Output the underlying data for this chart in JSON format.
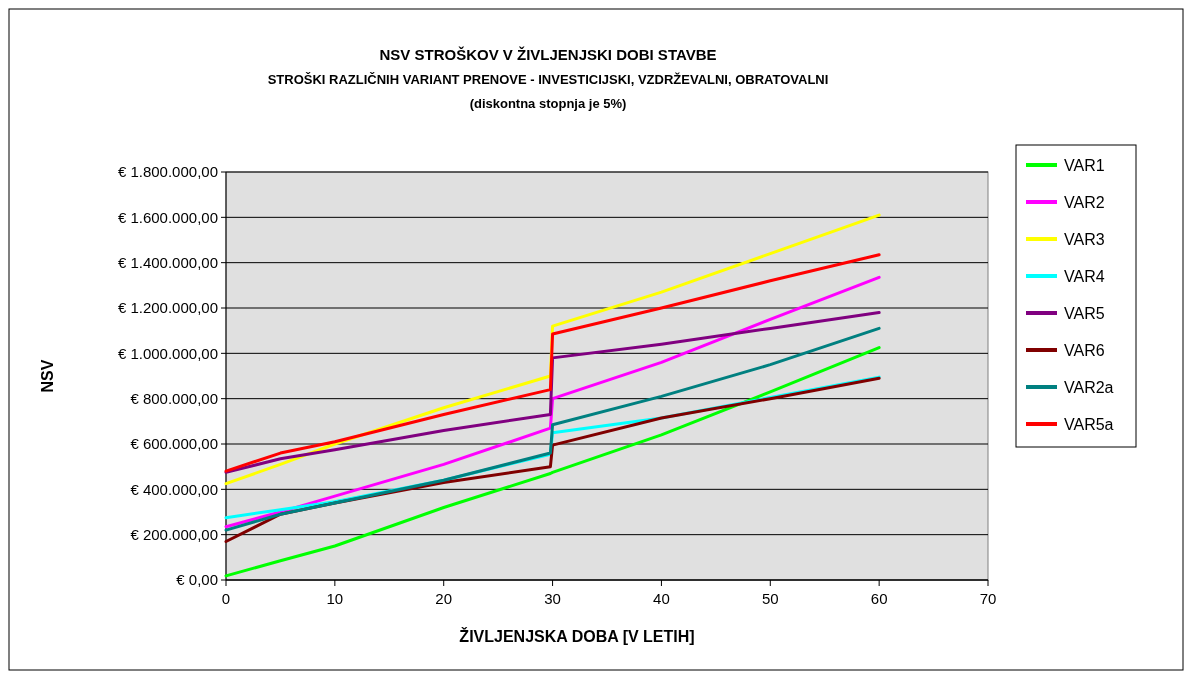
{
  "chart_data": {
    "type": "line",
    "title": "NSV STROŠKOV V ŽIVLJENJSKI DOBI STAVBE",
    "subtitle": "STROŠKI RAZLIČNIH VARIANT PRENOVE - INVESTICIJSKI, VZDRŽEVALNI, OBRATOVALNI\n(diskontna stopnja je 5%)",
    "xlabel": "ŽIVLJENJSKA DOBA [V LETIH]",
    "ylabel": "NSV",
    "x": [
      0,
      5,
      10,
      20,
      29.8,
      30,
      40,
      50,
      60
    ],
    "series": [
      {
        "name": "VAR1",
        "color": "#00ff00",
        "values": [
          18000,
          85000,
          150000,
          320000,
          470000,
          475000,
          640000,
          830000,
          1025000
        ]
      },
      {
        "name": "VAR2",
        "color": "#ff00ff",
        "values": [
          235000,
          300000,
          370000,
          510000,
          670000,
          800000,
          960000,
          1150000,
          1335000
        ]
      },
      {
        "name": "VAR3",
        "color": "#ffff00",
        "values": [
          425000,
          510000,
          600000,
          760000,
          900000,
          1120000,
          1270000,
          1440000,
          1610000
        ]
      },
      {
        "name": "VAR4",
        "color": "#00ffff",
        "values": [
          275000,
          310000,
          345000,
          440000,
          555000,
          650000,
          715000,
          805000,
          895000
        ]
      },
      {
        "name": "VAR5",
        "color": "#800080",
        "values": [
          475000,
          535000,
          575000,
          660000,
          730000,
          980000,
          1040000,
          1110000,
          1180000
        ]
      },
      {
        "name": "VAR6",
        "color": "#800000",
        "values": [
          170000,
          290000,
          340000,
          430000,
          500000,
          595000,
          715000,
          800000,
          890000
        ]
      },
      {
        "name": "VAR2a",
        "color": "#008080",
        "values": [
          220000,
          290000,
          340000,
          440000,
          560000,
          685000,
          810000,
          950000,
          1110000
        ]
      },
      {
        "name": "VAR5a",
        "color": "#ff0000",
        "values": [
          480000,
          560000,
          610000,
          730000,
          840000,
          1085000,
          1200000,
          1320000,
          1435000
        ]
      }
    ],
    "xlim": [
      0,
      70
    ],
    "xticks": [
      0,
      10,
      20,
      30,
      40,
      50,
      60,
      70
    ],
    "ylim": [
      0,
      1800000
    ],
    "yticks": [
      {
        "value": 0,
        "label": "€ 0,00"
      },
      {
        "value": 200000,
        "label": "€ 200.000,00"
      },
      {
        "value": 400000,
        "label": "€ 400.000,00"
      },
      {
        "value": 600000,
        "label": "€ 600.000,00"
      },
      {
        "value": 800000,
        "label": "€ 800.000,00"
      },
      {
        "value": 1000000,
        "label": "€ 1.000.000,00"
      },
      {
        "value": 1200000,
        "label": "€ 1.200.000,00"
      },
      {
        "value": 1400000,
        "label": "€ 1.400.000,00"
      },
      {
        "value": 1600000,
        "label": "€ 1.600.000,00"
      },
      {
        "value": 1800000,
        "label": "€ 1.800.000,00"
      }
    ],
    "grid": "y",
    "legend": "right",
    "marker": "none",
    "line_style": "solid"
  }
}
